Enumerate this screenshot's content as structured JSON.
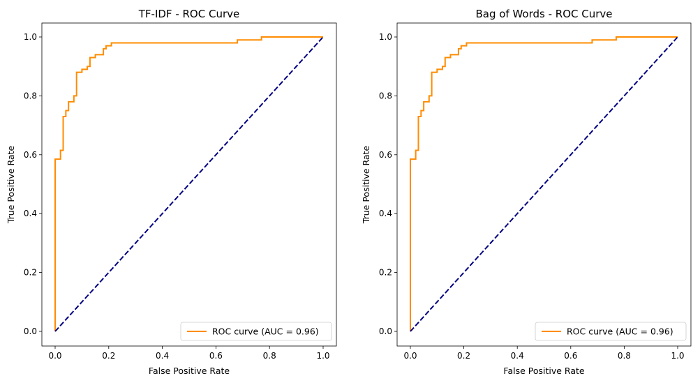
{
  "chart_data": [
    {
      "type": "line",
      "title": "TF-IDF - ROC Curve",
      "xlabel": "False Positive Rate",
      "ylabel": "True Positive Rate",
      "xlim": [
        0.0,
        1.0
      ],
      "ylim": [
        0.0,
        1.0
      ],
      "xticks": [
        "0.0",
        "0.2",
        "0.4",
        "0.6",
        "0.8",
        "1.0"
      ],
      "yticks": [
        "0.0",
        "0.2",
        "0.4",
        "0.6",
        "0.8",
        "1.0"
      ],
      "grid": false,
      "legend_position": "lower-right",
      "series": [
        {
          "name": "ROC curve (AUC = 0.96)",
          "color": "#ff8c00",
          "style": "solid",
          "x": [
            0.0,
            0.0,
            0.02,
            0.02,
            0.03,
            0.03,
            0.04,
            0.04,
            0.05,
            0.05,
            0.07,
            0.07,
            0.08,
            0.08,
            0.1,
            0.1,
            0.12,
            0.12,
            0.13,
            0.13,
            0.15,
            0.15,
            0.18,
            0.18,
            0.19,
            0.19,
            0.21,
            0.21,
            0.68,
            0.68,
            0.77,
            0.77,
            1.0,
            1.0
          ],
          "y": [
            0.0,
            0.585,
            0.585,
            0.615,
            0.615,
            0.73,
            0.73,
            0.75,
            0.75,
            0.78,
            0.78,
            0.8,
            0.8,
            0.88,
            0.88,
            0.89,
            0.89,
            0.9,
            0.9,
            0.93,
            0.93,
            0.94,
            0.94,
            0.96,
            0.96,
            0.97,
            0.97,
            0.98,
            0.98,
            0.99,
            0.99,
            1.0,
            1.0,
            1.0
          ]
        },
        {
          "name": "",
          "color": "#000080",
          "style": "dashed",
          "x": [
            0.0,
            1.0
          ],
          "y": [
            0.0,
            1.0
          ]
        }
      ]
    },
    {
      "type": "line",
      "title": "Bag of Words - ROC Curve",
      "xlabel": "False Positive Rate",
      "ylabel": "True Positive Rate",
      "xlim": [
        0.0,
        1.0
      ],
      "ylim": [
        0.0,
        1.0
      ],
      "xticks": [
        "0.0",
        "0.2",
        "0.4",
        "0.6",
        "0.8",
        "1.0"
      ],
      "yticks": [
        "0.0",
        "0.2",
        "0.4",
        "0.6",
        "0.8",
        "1.0"
      ],
      "grid": false,
      "legend_position": "lower-right",
      "series": [
        {
          "name": "ROC curve (AUC = 0.96)",
          "color": "#ff8c00",
          "style": "solid",
          "x": [
            0.0,
            0.0,
            0.02,
            0.02,
            0.03,
            0.03,
            0.04,
            0.04,
            0.05,
            0.05,
            0.07,
            0.07,
            0.08,
            0.08,
            0.1,
            0.1,
            0.12,
            0.12,
            0.13,
            0.13,
            0.15,
            0.15,
            0.18,
            0.18,
            0.19,
            0.19,
            0.21,
            0.21,
            0.68,
            0.68,
            0.77,
            0.77,
            1.0,
            1.0
          ],
          "y": [
            0.0,
            0.585,
            0.585,
            0.615,
            0.615,
            0.73,
            0.73,
            0.75,
            0.75,
            0.78,
            0.78,
            0.8,
            0.8,
            0.88,
            0.88,
            0.89,
            0.89,
            0.9,
            0.9,
            0.93,
            0.93,
            0.94,
            0.94,
            0.96,
            0.96,
            0.97,
            0.97,
            0.98,
            0.98,
            0.99,
            0.99,
            1.0,
            1.0,
            1.0
          ]
        },
        {
          "name": "",
          "color": "#000080",
          "style": "dashed",
          "x": [
            0.0,
            1.0
          ],
          "y": [
            0.0,
            1.0
          ]
        }
      ]
    }
  ]
}
